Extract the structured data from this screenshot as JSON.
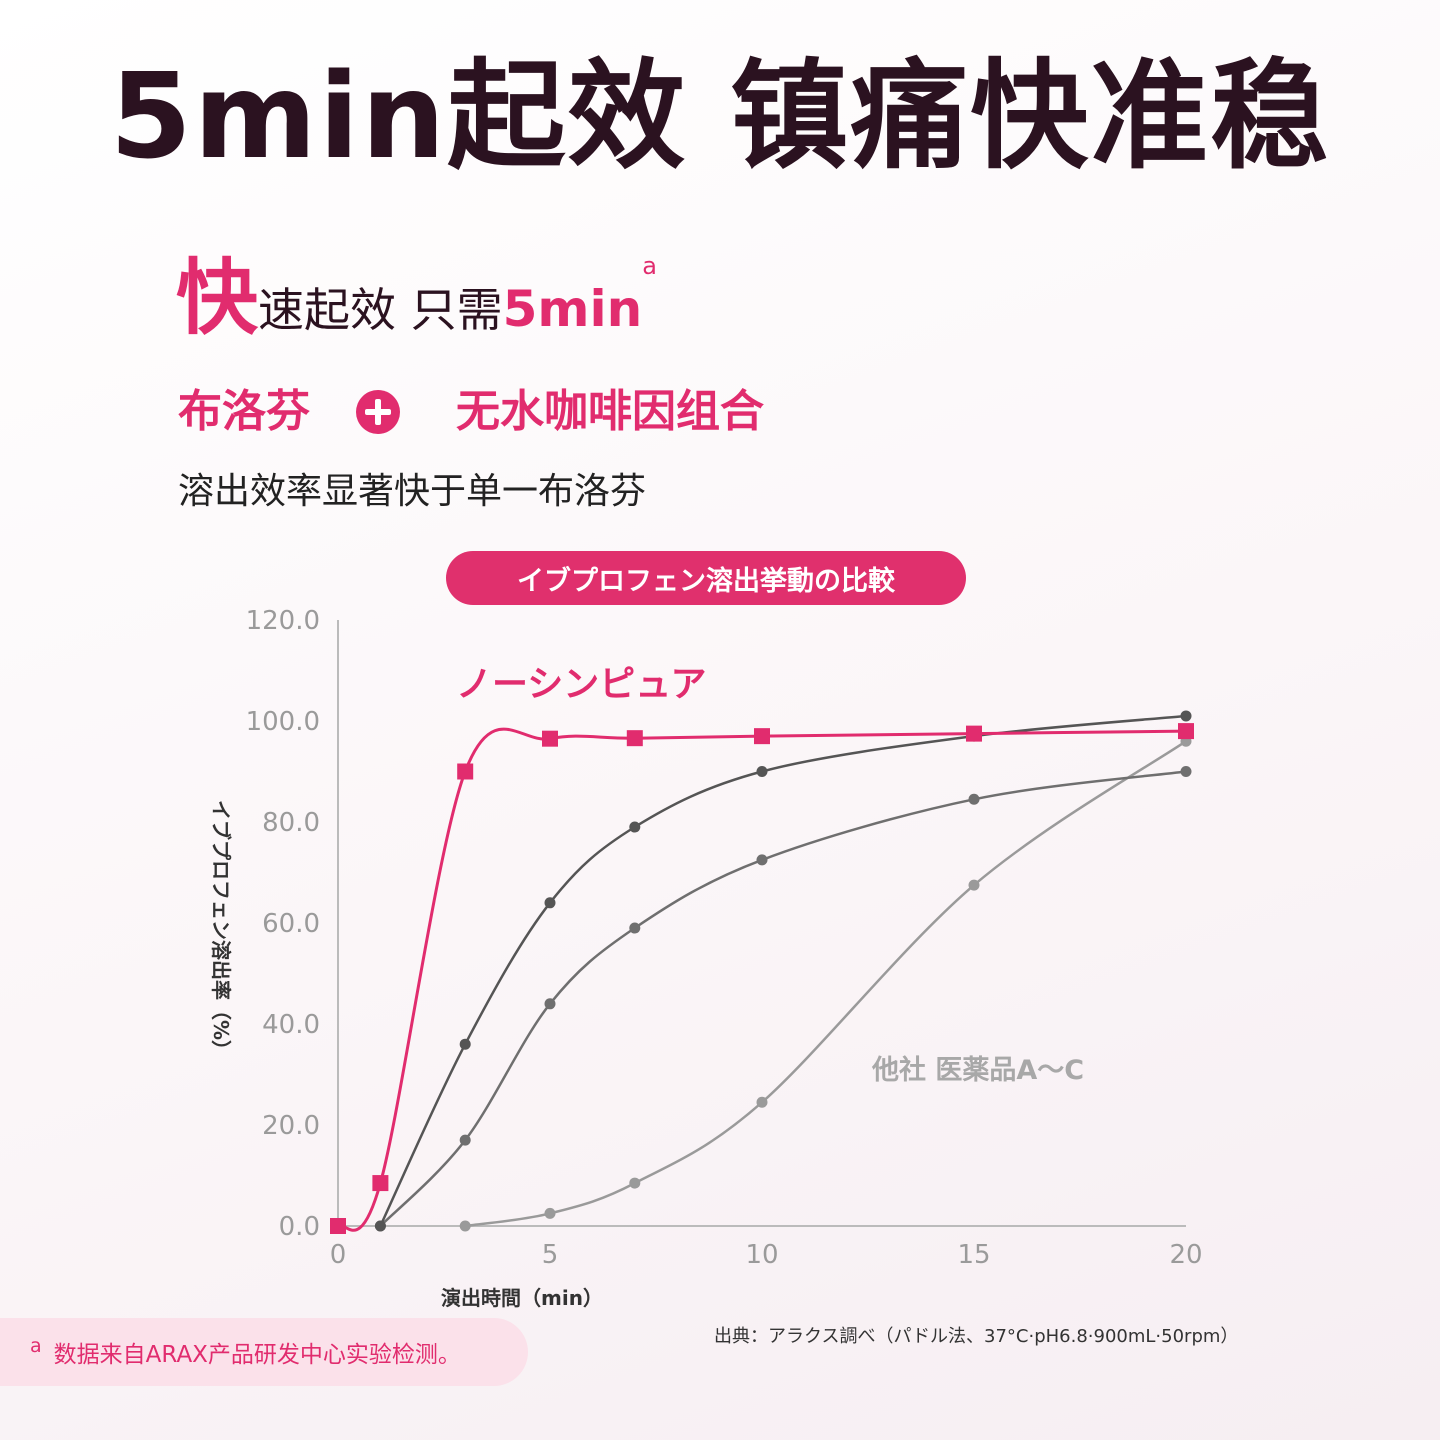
{
  "header": {
    "headline": "5min起效 镇痛快准稳",
    "sub1_big": "快",
    "sub1_mid": "速起效 只需",
    "sub1_accent": "5min",
    "sub1_sup": "a",
    "ingredient_a": "布洛芬",
    "ingredient_b": "无水咖啡因组合",
    "sub3": "溶出效率显著快于单一布洛芬"
  },
  "chart_data": {
    "type": "line",
    "title": "イブプロフェン溶出挙動の比較",
    "xlabel": "演出時間（min）",
    "ylabel": "イブプロフェン溶出率（%）",
    "xlim": [
      0,
      20
    ],
    "ylim": [
      0,
      120
    ],
    "x_ticks": [
      "0",
      "5",
      "10",
      "15",
      "20"
    ],
    "y_ticks": [
      "0.0",
      "20.0",
      "40.0",
      "60.0",
      "80.0",
      "100.0",
      "120.0"
    ],
    "grid": false,
    "annotations": [
      "ノーシンピュア",
      "他社 医薬品A～C"
    ],
    "series": [
      {
        "name": "ノーシンピュア",
        "color": "#e12c6e",
        "marker": "square",
        "x": [
          0,
          1,
          3,
          5,
          7,
          10,
          15,
          20
        ],
        "y": [
          0,
          8.5,
          90,
          96.5,
          96.6,
          97,
          97.5,
          98
        ]
      },
      {
        "name": "",
        "color": "#555555",
        "marker": "circle",
        "x": [
          1,
          3,
          5,
          7,
          10,
          15,
          20
        ],
        "y": [
          0,
          36,
          64,
          79,
          90,
          97,
          101
        ]
      },
      {
        "name": "",
        "color": "#6f6f6f",
        "marker": "circle",
        "x": [
          1,
          3,
          5,
          7,
          10,
          15,
          20
        ],
        "y": [
          0,
          17,
          44,
          59,
          72.5,
          84.5,
          90
        ]
      },
      {
        "name": "",
        "color": "#9a9a9a",
        "marker": "circle",
        "x": [
          3,
          5,
          7,
          10,
          15,
          20
        ],
        "y": [
          0,
          2.5,
          8.5,
          24.5,
          67.5,
          96
        ]
      }
    ]
  },
  "footer": {
    "footnote_sup": "a",
    "footnote": "数据来自ARAX产品研发中心实验检测。",
    "source": "出典：アラクス調べ（パドル法、37°C·pH6.8·900mL·50rpm）"
  }
}
